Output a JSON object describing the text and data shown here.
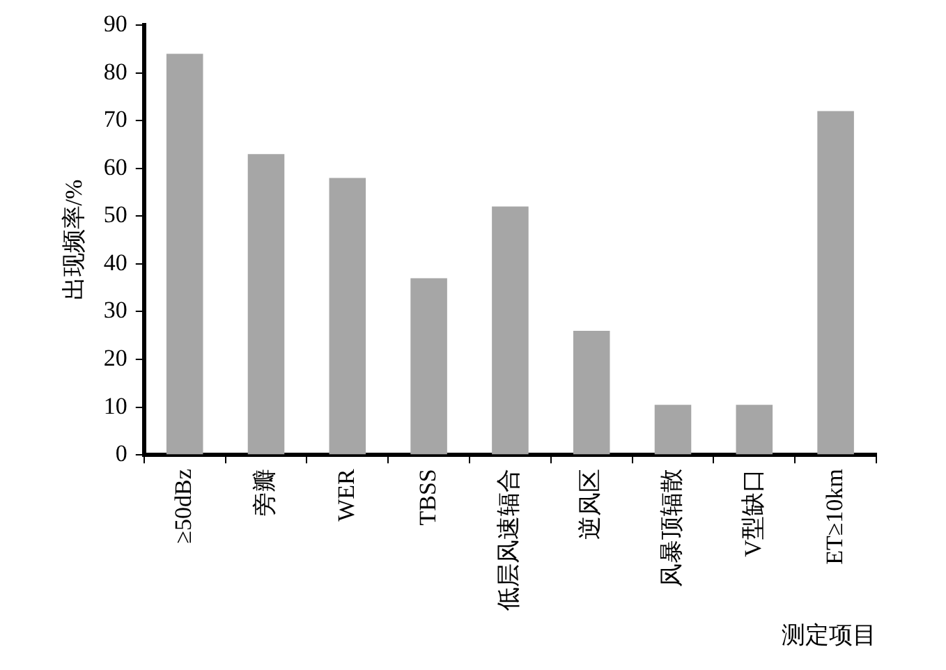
{
  "chart_data": {
    "type": "bar",
    "xlabel": "测定项目",
    "ylabel": "出现频率/%",
    "categories": [
      "≥50dBz",
      "旁瓣",
      "WER",
      "TBSS",
      "低层风速辐合",
      "逆风区",
      "风暴顶辐散",
      "V型缺口",
      "ET≥10km"
    ],
    "values": [
      84,
      63,
      58,
      37,
      52,
      26,
      10.5,
      10.5,
      72
    ],
    "color": "#a6a6a6",
    "ylim": [
      0,
      90
    ],
    "yticks": [
      0,
      10,
      20,
      30,
      40,
      50,
      60,
      70,
      80,
      90
    ],
    "grid": false,
    "legend": false
  }
}
